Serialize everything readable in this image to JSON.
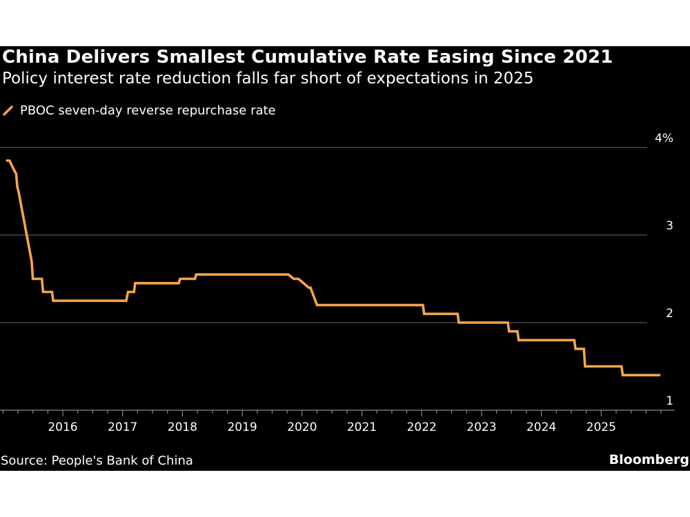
{
  "header": {
    "title": "China Delivers Smallest Cumulative Rate Easing Since 2021",
    "subtitle": "Policy interest rate reduction falls far short of expectations in 2025"
  },
  "legend": {
    "items": [
      {
        "label": "PBOC seven-day reverse repurchase rate",
        "icon": "line-swatch-icon",
        "color": "#f5a64a"
      }
    ]
  },
  "footer": {
    "source": "Source: People's Bank of China",
    "brand": "Bloomberg"
  },
  "colors": {
    "background": "#000000",
    "line": "#f5a64a",
    "grid": "#5a5a5a",
    "axis": "#8a8a8a",
    "text": "#ffffff"
  },
  "chart_data": {
    "type": "line",
    "title": "China Delivers Smallest Cumulative Rate Easing Since 2021",
    "subtitle": "Policy interest rate reduction falls far short of expectations in 2025",
    "xlabel": "",
    "ylabel": "",
    "xlim": [
      2014.95,
      2026.05
    ],
    "ylim": [
      1,
      4
    ],
    "y_ticks": [
      1,
      2,
      3,
      4
    ],
    "y_tick_labels": [
      "1",
      "2",
      "3",
      "4%"
    ],
    "x_ticks": [
      2016,
      2017,
      2018,
      2019,
      2020,
      2021,
      2022,
      2023,
      2024,
      2025
    ],
    "x_tick_labels": [
      "2016",
      "2017",
      "2018",
      "2019",
      "2020",
      "2021",
      "2022",
      "2023",
      "2024",
      "2025"
    ],
    "minor_ticks": "quarterly",
    "grid": true,
    "y_axis_side": "right",
    "legend_position": "top-left",
    "source": "Source: People's Bank of China",
    "series": [
      {
        "name": "PBOC seven-day reverse repurchase rate",
        "color": "#f5a64a",
        "x": [
          2015.05,
          2015.11,
          2015.18,
          2015.22,
          2015.24,
          2015.26,
          2015.48,
          2015.5,
          2015.65,
          2015.67,
          2015.82,
          2015.84,
          2017.06,
          2017.09,
          2017.19,
          2017.21,
          2017.94,
          2017.96,
          2018.21,
          2018.23,
          2019.77,
          2019.86,
          2019.94,
          2020.11,
          2020.14,
          2020.25,
          2022.02,
          2022.04,
          2022.6,
          2022.62,
          2023.44,
          2023.46,
          2023.6,
          2023.62,
          2024.55,
          2024.57,
          2024.71,
          2024.73,
          2025.34,
          2025.36,
          2025.99
        ],
        "values": [
          3.85,
          3.85,
          3.75,
          3.7,
          3.55,
          3.5,
          2.7,
          2.5,
          2.5,
          2.35,
          2.35,
          2.25,
          2.25,
          2.35,
          2.35,
          2.45,
          2.45,
          2.5,
          2.5,
          2.55,
          2.55,
          2.5,
          2.5,
          2.4,
          2.4,
          2.2,
          2.2,
          2.1,
          2.1,
          2.0,
          2.0,
          1.9,
          1.9,
          1.8,
          1.8,
          1.7,
          1.7,
          1.5,
          1.5,
          1.4,
          1.4
        ]
      }
    ]
  }
}
